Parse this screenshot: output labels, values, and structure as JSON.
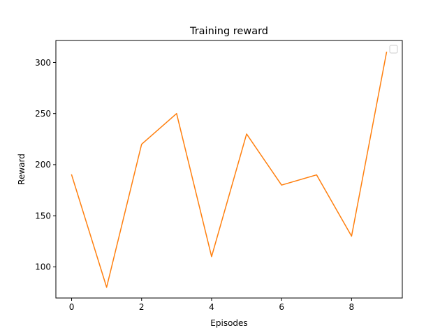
{
  "chart_data": {
    "type": "line",
    "title": "Training reward",
    "xlabel": "Episodes",
    "ylabel": "Reward",
    "x": [
      0,
      1,
      2,
      3,
      4,
      5,
      6,
      7,
      8,
      9
    ],
    "series": [
      {
        "values": [
          190,
          80,
          220,
          250,
          110,
          230,
          180,
          190,
          130,
          310
        ],
        "color": "#ff7f0e"
      }
    ],
    "xlim": [
      -0.45,
      9.45
    ],
    "ylim": [
      69.5,
      321.5
    ],
    "xticks": [
      0,
      2,
      4,
      6,
      8
    ],
    "yticks": [
      100,
      150,
      200,
      250,
      300
    ],
    "grid": false,
    "legend": {
      "position": "top-right",
      "entries": []
    }
  }
}
